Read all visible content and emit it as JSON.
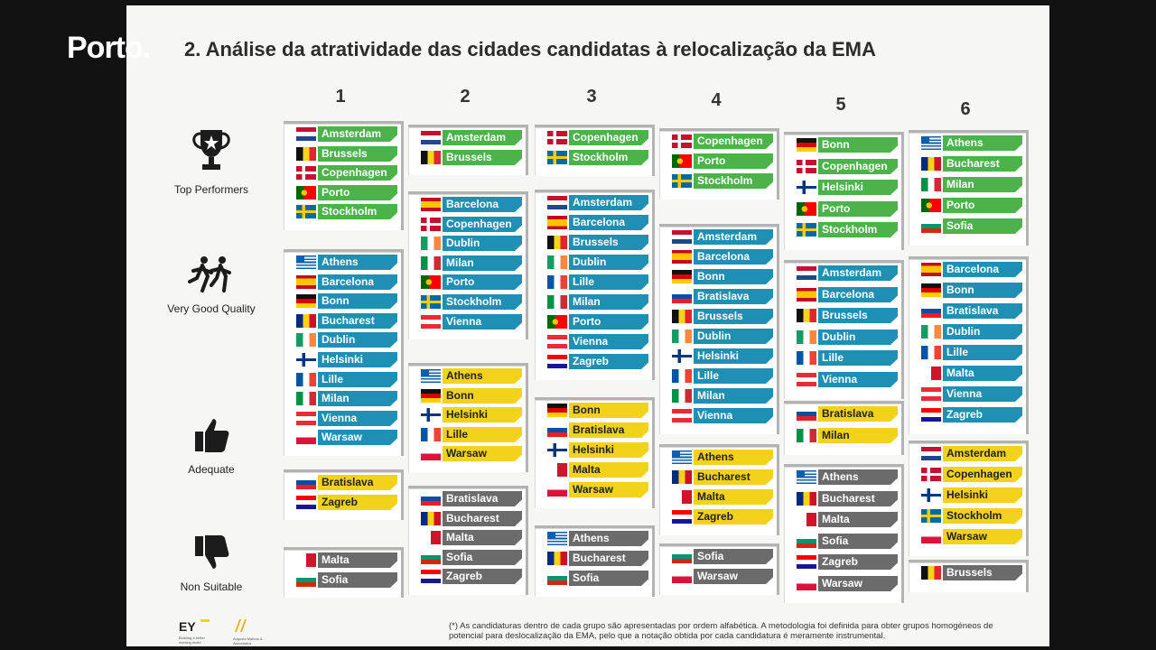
{
  "broadcast": {
    "logo": "Porto."
  },
  "slide": {
    "title": "2. Análise da atratividade das cidades candidatas à relocalização da EMA",
    "column_numbers": [
      "1",
      "2",
      "3",
      "4",
      "5",
      "6"
    ],
    "legend": [
      {
        "label": "Top Performers",
        "icon": "trophy-icon"
      },
      {
        "label": "Very Good Quality",
        "icon": "runners-icon"
      },
      {
        "label": "Adequate",
        "icon": "thumbs-up-icon"
      },
      {
        "label": "Non Suitable",
        "icon": "thumbs-down-icon"
      }
    ],
    "colors": {
      "top": "#4bb34a",
      "very_good": "#1f8fb3",
      "adequate": "#f2d21b",
      "non_suitable": "#6b6b6b"
    },
    "columns": [
      {
        "groups": [
          {
            "tier": "top",
            "cities": [
              "Amsterdam",
              "Brussels",
              "Copenhagen",
              "Porto",
              "Stockholm"
            ]
          },
          {
            "tier": "very_good",
            "cities": [
              "Athens",
              "Barcelona",
              "Bonn",
              "Bucharest",
              "Dublin",
              "Helsinki",
              "Lille",
              "Milan",
              "Vienna",
              "Warsaw"
            ]
          },
          {
            "tier": "adequate",
            "cities": [
              "Bratislava",
              "Zagreb"
            ]
          },
          {
            "tier": "non_suitable",
            "cities": [
              "Malta",
              "Sofia"
            ]
          }
        ]
      },
      {
        "groups": [
          {
            "tier": "top",
            "cities": [
              "Amsterdam",
              "Brussels"
            ]
          },
          {
            "tier": "very_good",
            "cities": [
              "Barcelona",
              "Copenhagen",
              "Dublin",
              "Milan",
              "Porto",
              "Stockholm",
              "Vienna"
            ]
          },
          {
            "tier": "adequate",
            "cities": [
              "Athens",
              "Bonn",
              "Helsinki",
              "Lille",
              "Warsaw"
            ]
          },
          {
            "tier": "non_suitable",
            "cities": [
              "Bratislava",
              "Bucharest",
              "Malta",
              "Sofia",
              "Zagreb"
            ]
          }
        ]
      },
      {
        "groups": [
          {
            "tier": "top",
            "cities": [
              "Copenhagen",
              "Stockholm"
            ]
          },
          {
            "tier": "very_good",
            "cities": [
              "Amsterdam",
              "Barcelona",
              "Brussels",
              "Dublin",
              "Lille",
              "Milan",
              "Porto",
              "Vienna",
              "Zagreb"
            ]
          },
          {
            "tier": "adequate",
            "cities": [
              "Bonn",
              "Bratislava",
              "Helsinki",
              "Malta",
              "Warsaw"
            ]
          },
          {
            "tier": "non_suitable",
            "cities": [
              "Athens",
              "Bucharest",
              "Sofia"
            ]
          }
        ]
      },
      {
        "groups": [
          {
            "tier": "top",
            "cities": [
              "Copenhagen",
              "Porto",
              "Stockholm"
            ]
          },
          {
            "tier": "very_good",
            "cities": [
              "Amsterdam",
              "Barcelona",
              "Bonn",
              "Bratislava",
              "Brussels",
              "Dublin",
              "Helsinki",
              "Lille",
              "Milan",
              "Vienna"
            ]
          },
          {
            "tier": "adequate",
            "cities": [
              "Athens",
              "Bucharest",
              "Malta",
              "Zagreb"
            ]
          },
          {
            "tier": "non_suitable",
            "cities": [
              "Sofia",
              "Warsaw"
            ]
          }
        ]
      },
      {
        "groups": [
          {
            "tier": "top",
            "cities": [
              "Bonn",
              "Copenhagen",
              "Helsinki",
              "Porto",
              "Stockholm"
            ]
          },
          {
            "tier": "very_good",
            "cities": [
              "Amsterdam",
              "Barcelona",
              "Brussels",
              "Dublin",
              "Lille",
              "Vienna"
            ]
          },
          {
            "tier": "adequate",
            "cities": [
              "Bratislava",
              "Milan"
            ]
          },
          {
            "tier": "non_suitable",
            "cities": [
              "Athens",
              "Bucharest",
              "Malta",
              "Sofia",
              "Zagreb",
              "Warsaw"
            ]
          }
        ]
      },
      {
        "groups": [
          {
            "tier": "top",
            "cities": [
              "Athens",
              "Bucharest",
              "Milan",
              "Porto",
              "Sofia"
            ]
          },
          {
            "tier": "very_good",
            "cities": [
              "Barcelona",
              "Bonn",
              "Bratislava",
              "Dublin",
              "Lille",
              "Malta",
              "Vienna",
              "Zagreb"
            ]
          },
          {
            "tier": "adequate",
            "cities": [
              "Amsterdam",
              "Copenhagen",
              "Helsinki",
              "Stockholm",
              "Warsaw"
            ]
          },
          {
            "tier": "non_suitable",
            "cities": [
              "Brussels"
            ]
          }
        ]
      }
    ],
    "footnote": "(*) As candidaturas dentro de cada grupo são apresentadas por ordem alfabética. A metodologia foi definida para obter grupos homogéneos de potencial para deslocalização da EMA, pelo que a notação obtida por cada candidatura é meramente instrumental.",
    "logos": {
      "ey": "EY",
      "ey_tagline": "Building a better working world",
      "partner": "Augusto Mateus & Associados"
    }
  }
}
